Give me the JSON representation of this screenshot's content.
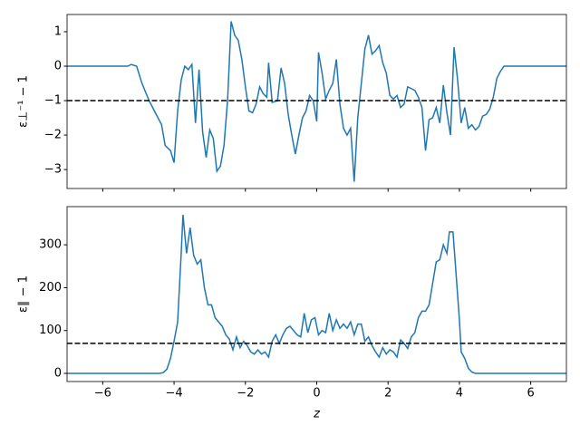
{
  "chart_data": [
    {
      "type": "line",
      "ylabel": "ε⊥⁻¹ − 1",
      "x": [
        -7,
        -5.3,
        -5.2,
        -5.05,
        -4.9,
        -4.7,
        -4.5,
        -4.35,
        -4.25,
        -4.1,
        -4.0,
        -3.9,
        -3.8,
        -3.7,
        -3.6,
        -3.5,
        -3.4,
        -3.3,
        -3.2,
        -3.1,
        -3.0,
        -2.9,
        -2.8,
        -2.7,
        -2.6,
        -2.5,
        -2.4,
        -2.3,
        -2.2,
        -2.1,
        -2.0,
        -1.9,
        -1.8,
        -1.7,
        -1.6,
        -1.5,
        -1.4,
        -1.35,
        -1.25,
        -1.1,
        -1.0,
        -0.9,
        -0.8,
        -0.7,
        -0.6,
        -0.5,
        -0.4,
        -0.3,
        -0.2,
        -0.1,
        0,
        0.05,
        0.15,
        0.25,
        0.35,
        0.45,
        0.55,
        0.65,
        0.75,
        0.85,
        0.95,
        1.05,
        1.15,
        1.25,
        1.35,
        1.45,
        1.55,
        1.65,
        1.75,
        1.85,
        1.95,
        2.05,
        2.15,
        2.25,
        2.35,
        2.45,
        2.55,
        2.65,
        2.75,
        2.85,
        2.95,
        3.05,
        3.15,
        3.25,
        3.35,
        3.45,
        3.55,
        3.65,
        3.75,
        3.85,
        3.95,
        4.05,
        4.15,
        4.25,
        4.35,
        4.45,
        4.55,
        4.65,
        4.75,
        4.85,
        4.95,
        5.05,
        5.15,
        5.25,
        5.4,
        7
      ],
      "series": [
        {
          "color": "#1f77b4",
          "values": [
            0,
            0,
            0.05,
            0,
            -0.5,
            -1,
            -1.4,
            -1.7,
            -2.3,
            -2.45,
            -2.8,
            -1.3,
            -0.4,
            0,
            -0.1,
            0.05,
            -1.65,
            -0.1,
            -1.9,
            -2.65,
            -1.85,
            -2.1,
            -3.05,
            -2.9,
            -2.3,
            -1,
            1.3,
            0.9,
            0.75,
            0.2,
            -0.6,
            -1.3,
            -1.35,
            -1.1,
            -0.6,
            -0.8,
            -0.9,
            0.1,
            -1.05,
            -1.0,
            -0.05,
            -0.5,
            -1.4,
            -2.0,
            -2.55,
            -2.0,
            -1.5,
            -1.3,
            -0.85,
            -1.0,
            -1.6,
            0.4,
            -0.2,
            -0.95,
            -0.7,
            -0.5,
            0.2,
            -1.1,
            -1.8,
            -2.0,
            -1.8,
            -3.35,
            -1.5,
            -0.5,
            0.5,
            0.9,
            0.35,
            0.45,
            0.6,
            0.1,
            -0.2,
            -0.85,
            -0.95,
            -0.85,
            -1.2,
            -1.1,
            -0.6,
            -0.65,
            -0.7,
            -0.9,
            -1.2,
            -2.45,
            -1.55,
            -1.5,
            -1.2,
            -1.65,
            -0.55,
            -1.35,
            -2.0,
            0.55,
            -0.4,
            -1.65,
            -1.2,
            -1.8,
            -1.7,
            -1.85,
            -1.75,
            -1.45,
            -1.4,
            -1.25,
            -0.9,
            -0.35,
            -0.15,
            0,
            0,
            0
          ]
        }
      ],
      "hline": {
        "value": -1,
        "color": "#000000"
      },
      "xlim": [
        -7,
        7
      ],
      "ylim": [
        -3.55,
        1.5
      ],
      "xticks": [
        -6,
        -4,
        -2,
        0,
        2,
        4,
        6
      ],
      "xtick_labels": false,
      "yticks": [
        {
          "value": -3,
          "label": "−3"
        },
        {
          "value": -2,
          "label": "−2"
        },
        {
          "value": -1,
          "label": "−1"
        },
        0,
        1
      ]
    },
    {
      "type": "line",
      "ylabel": "ε∥ − 1",
      "xlabel": "z",
      "x": [
        -7,
        -4.4,
        -4.3,
        -4.2,
        -4.1,
        -4.0,
        -3.9,
        -3.8,
        -3.75,
        -3.65,
        -3.55,
        -3.45,
        -3.35,
        -3.25,
        -3.15,
        -3.05,
        -2.95,
        -2.85,
        -2.75,
        -2.65,
        -2.55,
        -2.45,
        -2.35,
        -2.25,
        -2.15,
        -2.05,
        -1.95,
        -1.85,
        -1.75,
        -1.65,
        -1.55,
        -1.45,
        -1.35,
        -1.25,
        -1.15,
        -1.05,
        -0.95,
        -0.85,
        -0.75,
        -0.65,
        -0.55,
        -0.45,
        -0.35,
        -0.25,
        -0.15,
        -0.05,
        0.05,
        0.15,
        0.25,
        0.35,
        0.45,
        0.55,
        0.65,
        0.75,
        0.85,
        0.95,
        1.05,
        1.15,
        1.25,
        1.35,
        1.45,
        1.55,
        1.65,
        1.75,
        1.85,
        1.95,
        2.05,
        2.15,
        2.25,
        2.35,
        2.45,
        2.55,
        2.65,
        2.75,
        2.85,
        2.95,
        3.05,
        3.15,
        3.25,
        3.35,
        3.45,
        3.55,
        3.65,
        3.72,
        3.82,
        3.9,
        4.0,
        4.05,
        4.15,
        4.25,
        4.35,
        4.45,
        7
      ],
      "series": [
        {
          "color": "#1f77b4",
          "values": [
            0,
            0,
            2,
            10,
            35,
            75,
            120,
            280,
            370,
            280,
            340,
            275,
            255,
            265,
            200,
            160,
            160,
            130,
            120,
            110,
            90,
            80,
            55,
            85,
            60,
            75,
            65,
            50,
            45,
            55,
            45,
            50,
            38,
            75,
            90,
            70,
            90,
            105,
            110,
            100,
            90,
            85,
            140,
            95,
            125,
            130,
            90,
            100,
            95,
            140,
            100,
            125,
            105,
            115,
            105,
            120,
            90,
            115,
            115,
            75,
            85,
            65,
            50,
            38,
            60,
            45,
            55,
            50,
            38,
            78,
            70,
            58,
            85,
            95,
            130,
            145,
            145,
            160,
            210,
            260,
            265,
            300,
            280,
            330,
            330,
            240,
            125,
            50,
            35,
            12,
            3,
            0,
            0
          ]
        }
      ],
      "hline": {
        "value": 70,
        "color": "#000000"
      },
      "xlim": [
        -7,
        7
      ],
      "ylim": [
        -19,
        389
      ],
      "xticks": [
        {
          "value": -6,
          "label": "−6"
        },
        {
          "value": -4,
          "label": "−4"
        },
        {
          "value": -2,
          "label": "−2"
        },
        0,
        2,
        4,
        6
      ],
      "xtick_labels": true,
      "yticks": [
        0,
        100,
        200,
        300
      ]
    }
  ]
}
